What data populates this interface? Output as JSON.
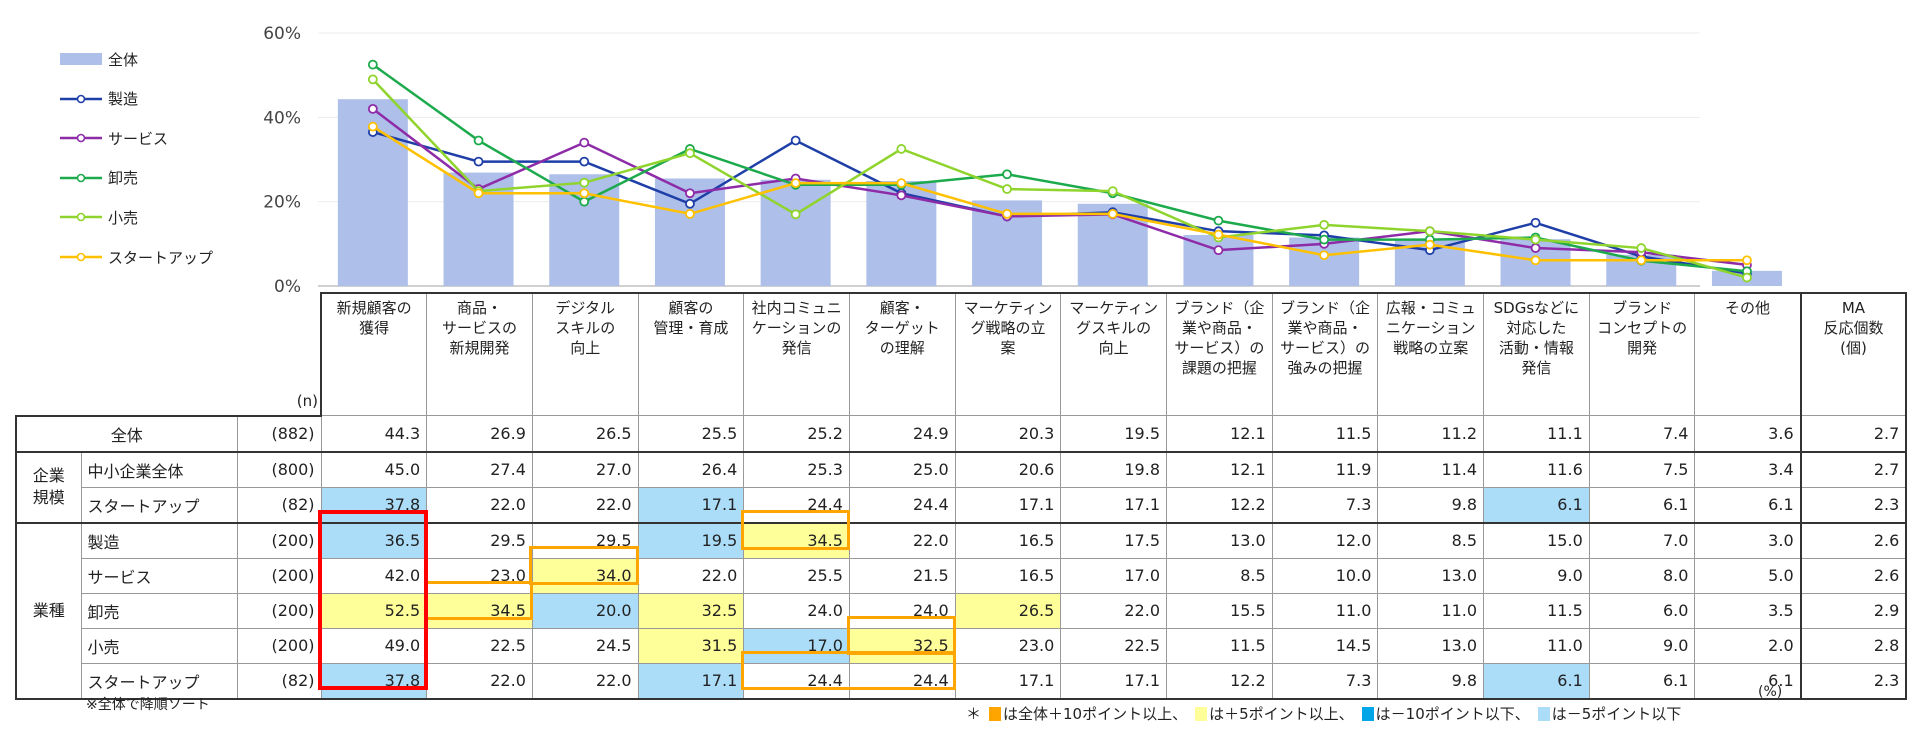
{
  "chart_data": {
    "type": "bar+line",
    "ylim": [
      0,
      60
    ],
    "yticks": [
      "0%",
      "20%",
      "40%",
      "60%"
    ],
    "ytick_values": [
      0,
      20,
      40,
      60
    ],
    "grid": true,
    "legend_position": "left",
    "categories": [
      "新規顧客の\n獲得",
      "商品・\nサービスの\n新規開発",
      "デジタル\nスキルの\n向上",
      "顧客の\n管理・育成",
      "社内コミュニ\nケーションの\n発信",
      "顧客・\nターゲット\nの理解",
      "マーケティン\nグ戦略の立\n案",
      "マーケティン\nグスキルの\n向上",
      "ブランド（企\n業や商品・\nサービス）の\n課題の把握",
      "ブランド（企\n業や商品・\nサービス）の\n強みの把握",
      "広報・コミュ\nニケーション\n戦略の立案",
      "SDGsなどに\n対応した\n活動・情報\n発信",
      "ブランド\nコンセプトの\n開発",
      "その他"
    ],
    "bar_series": {
      "name": "全体",
      "color": "#aebfea",
      "values": [
        44.3,
        26.9,
        26.5,
        25.5,
        25.2,
        24.9,
        20.3,
        19.5,
        12.1,
        11.5,
        11.2,
        11.1,
        7.4,
        3.6
      ]
    },
    "line_series": [
      {
        "name": "製造",
        "color": "#1f3fa8",
        "values": [
          36.5,
          29.5,
          29.5,
          19.5,
          34.5,
          22.0,
          16.5,
          17.5,
          13.0,
          12.0,
          8.5,
          15.0,
          7.0,
          3.0
        ]
      },
      {
        "name": "サービス",
        "color": "#8e2ca8",
        "values": [
          42.0,
          23.0,
          34.0,
          22.0,
          25.5,
          21.5,
          16.5,
          17.0,
          8.5,
          10.0,
          13.0,
          9.0,
          8.0,
          5.0
        ]
      },
      {
        "name": "卸売",
        "color": "#1daa4c",
        "values": [
          52.5,
          34.5,
          20.0,
          32.5,
          24.0,
          24.0,
          26.5,
          22.0,
          15.5,
          11.0,
          11.0,
          11.5,
          6.0,
          3.5
        ]
      },
      {
        "name": "小売",
        "color": "#8fd42c",
        "values": [
          49.0,
          22.5,
          24.5,
          31.5,
          17.0,
          32.5,
          23.0,
          22.5,
          11.5,
          14.5,
          13.0,
          11.0,
          9.0,
          2.0
        ]
      },
      {
        "name": "スタートアップ",
        "color": "#ffc000",
        "values": [
          37.8,
          22.0,
          22.0,
          17.1,
          24.4,
          24.4,
          17.1,
          17.1,
          12.2,
          7.3,
          9.8,
          6.1,
          6.1,
          6.1
        ]
      }
    ]
  },
  "table": {
    "n_header": "(n)",
    "extra_column": "MA\n反応個数\n(個)",
    "rows": [
      {
        "group": "",
        "label": "全体",
        "n": "(882)",
        "values": [
          "44.3",
          "26.9",
          "26.5",
          "25.5",
          "25.2",
          "24.9",
          "20.3",
          "19.5",
          "12.1",
          "11.5",
          "11.2",
          "11.1",
          "7.4",
          "3.6",
          "2.7"
        ]
      },
      {
        "group": "企業\n規模",
        "label": "中小企業全体",
        "n": "(800)",
        "values": [
          "45.0",
          "27.4",
          "27.0",
          "26.4",
          "25.3",
          "25.0",
          "20.6",
          "19.8",
          "12.1",
          "11.9",
          "11.4",
          "11.6",
          "7.5",
          "3.4",
          "2.7"
        ]
      },
      {
        "group": "",
        "label": "スタートアップ",
        "n": "(82)",
        "values": [
          "37.8",
          "22.0",
          "22.0",
          "17.1",
          "24.4",
          "24.4",
          "17.1",
          "17.1",
          "12.2",
          "7.3",
          "9.8",
          "6.1",
          "6.1",
          "6.1",
          "2.3"
        ]
      },
      {
        "group": "業種",
        "label": "製造",
        "n": "(200)",
        "values": [
          "36.5",
          "29.5",
          "29.5",
          "19.5",
          "34.5",
          "22.0",
          "16.5",
          "17.5",
          "13.0",
          "12.0",
          "8.5",
          "15.0",
          "7.0",
          "3.0",
          "2.6"
        ]
      },
      {
        "group": "",
        "label": "サービス",
        "n": "(200)",
        "values": [
          "42.0",
          "23.0",
          "34.0",
          "22.0",
          "25.5",
          "21.5",
          "16.5",
          "17.0",
          "8.5",
          "10.0",
          "13.0",
          "9.0",
          "8.0",
          "5.0",
          "2.6"
        ]
      },
      {
        "group": "",
        "label": "卸売",
        "n": "(200)",
        "values": [
          "52.5",
          "34.5",
          "20.0",
          "32.5",
          "24.0",
          "24.0",
          "26.5",
          "22.0",
          "15.5",
          "11.0",
          "11.0",
          "11.5",
          "6.0",
          "3.5",
          "2.9"
        ]
      },
      {
        "group": "",
        "label": "小売",
        "n": "(200)",
        "values": [
          "49.0",
          "22.5",
          "24.5",
          "31.5",
          "17.0",
          "32.5",
          "23.0",
          "22.5",
          "11.5",
          "14.5",
          "13.0",
          "11.0",
          "9.0",
          "2.0",
          "2.8"
        ]
      },
      {
        "group": "",
        "label": "スタートアップ",
        "n": "(82)",
        "values": [
          "37.8",
          "22.0",
          "22.0",
          "17.1",
          "24.4",
          "24.4",
          "17.1",
          "17.1",
          "12.2",
          "7.3",
          "9.8",
          "6.1",
          "6.1",
          "6.1",
          "2.3"
        ]
      }
    ],
    "highlights": [
      {
        "row": 2,
        "col": 0,
        "fill": "lightblue"
      },
      {
        "row": 2,
        "col": 3,
        "fill": "lightblue"
      },
      {
        "row": 2,
        "col": 11,
        "fill": "lightblue"
      },
      {
        "row": 3,
        "col": 0,
        "fill": "lightblue"
      },
      {
        "row": 3,
        "col": 3,
        "fill": "lightblue"
      },
      {
        "row": 3,
        "col": 4,
        "fill": "yellow",
        "border": "orange"
      },
      {
        "row": 4,
        "col": 2,
        "fill": "yellow",
        "border": "orange"
      },
      {
        "row": 5,
        "col": 0,
        "fill": "yellow"
      },
      {
        "row": 5,
        "col": 1,
        "fill": "yellow",
        "border": "orange"
      },
      {
        "row": 5,
        "col": 2,
        "fill": "lightblue"
      },
      {
        "row": 5,
        "col": 3,
        "fill": "yellow"
      },
      {
        "row": 5,
        "col": 6,
        "fill": "yellow"
      },
      {
        "row": 6,
        "col": 3,
        "fill": "yellow"
      },
      {
        "row": 6,
        "col": 4,
        "fill": "lightblue"
      },
      {
        "row": 6,
        "col": 5,
        "fill": "yellow",
        "border": "orange"
      },
      {
        "row": 7,
        "col": 0,
        "fill": "lightblue"
      },
      {
        "row": 7,
        "col": 3,
        "fill": "lightblue"
      },
      {
        "row": 7,
        "col": 11,
        "fill": "lightblue"
      }
    ],
    "outline_boxes": [
      {
        "rows": [
          3,
          7
        ],
        "cols": [
          0,
          0
        ],
        "color": "red"
      },
      {
        "rows": [
          7,
          7
        ],
        "cols": [
          4,
          5
        ],
        "color": "orange"
      }
    ]
  },
  "colors": {
    "yellow": "#ffff99",
    "lightblue": "#abdcf8",
    "blue": "#00a6e8",
    "orange": "#ffa500",
    "red": "#ff0000"
  },
  "note": "※全体で降順ソート",
  "footnote": {
    "star": "＊",
    "items": [
      {
        "color": "orange",
        "text": "は全体＋10ポイント以上、"
      },
      {
        "color": "yellow",
        "text": "は＋5ポイント以上、"
      },
      {
        "color": "blue",
        "text": "は－10ポイント以下、"
      },
      {
        "color": "lightblue",
        "text": "は－5ポイント以下"
      }
    ],
    "unit": "(%)"
  }
}
